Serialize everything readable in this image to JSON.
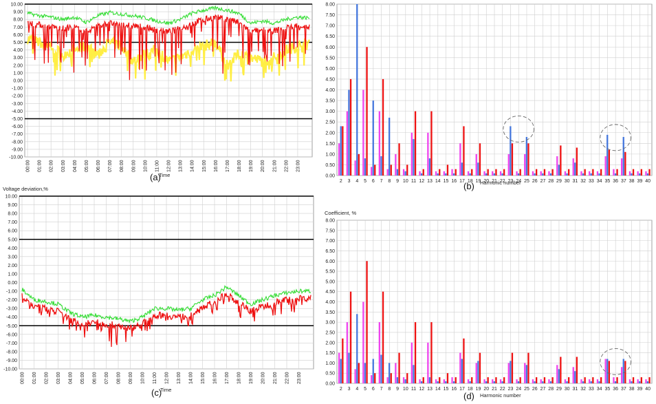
{
  "chart_data": [
    {
      "id": "a",
      "type": "line",
      "panel_label": "(a)",
      "title": "",
      "ylabel": "",
      "xlabel": "Time",
      "ylim": [
        -10,
        10
      ],
      "y_ticks": [
        "10.00",
        "9.00",
        "8.00",
        "7.00",
        "6.00",
        "5.00",
        "4.00",
        "3.00",
        "2.00",
        "1.00",
        "0.00",
        "-1.00",
        "-2.00",
        "-3.00",
        "-4.00",
        "-5.00",
        "-6.00",
        "-7.00",
        "-8.00",
        "-9.00",
        "-10.00"
      ],
      "x_ticks": [
        "00:00",
        "01:00",
        "02:00",
        "03:00",
        "04:00",
        "05:00",
        "06:00",
        "07:00",
        "08:00",
        "09:00",
        "10:00",
        "11:00",
        "12:00",
        "13:00",
        "14:00",
        "15:00",
        "16:00",
        "17:00",
        "18:00",
        "19:00",
        "20:00",
        "21:00",
        "22:00",
        "23:00"
      ],
      "limit_lines": [
        5,
        -5
      ],
      "grid": true,
      "series": [
        {
          "color": "#33dd33",
          "x": [
            0,
            1,
            2,
            3,
            4,
            5,
            6,
            7,
            8,
            9,
            10,
            11,
            12,
            13,
            14,
            15,
            16,
            17,
            18,
            19,
            20,
            21,
            22,
            23,
            24
          ],
          "values": [
            8.8,
            8.5,
            8.3,
            8.0,
            8.3,
            7.6,
            8.5,
            8.9,
            8.7,
            8.5,
            8.2,
            7.8,
            7.5,
            8.0,
            8.8,
            9.2,
            9.5,
            9.2,
            8.8,
            7.5,
            7.8,
            7.5,
            8.0,
            8.3,
            8.2
          ]
        },
        {
          "color": "#ee1111",
          "x": [
            0,
            1,
            2,
            3,
            4,
            5,
            6,
            7,
            8,
            9,
            10,
            11,
            12,
            13,
            14,
            15,
            16,
            17,
            18,
            19,
            20,
            21,
            22,
            23,
            24
          ],
          "values": [
            7.6,
            7.3,
            7.0,
            6.8,
            7.0,
            6.4,
            7.2,
            7.5,
            7.3,
            7.2,
            7.0,
            6.6,
            6.4,
            6.8,
            7.5,
            8.0,
            8.3,
            8.0,
            7.6,
            6.4,
            6.6,
            6.5,
            6.9,
            7.2,
            7.0
          ],
          "dips_to": [
            2.5,
            2.0,
            1.5,
            0.5,
            0.8,
            1.5,
            0.5,
            2.5,
            1.5,
            -1.0,
            1.0,
            2.0,
            0.5,
            1.0,
            2.5,
            2.0,
            3.0,
            -1.0,
            1.5,
            1.0,
            0.5,
            1.0,
            2.0,
            2.5,
            3.0
          ]
        },
        {
          "color": "#ffee44",
          "x": [
            0,
            1,
            2,
            3,
            4,
            5,
            6,
            7,
            8,
            9,
            10,
            11,
            12,
            13,
            14,
            15,
            16,
            17,
            18,
            19,
            20,
            21,
            22,
            23,
            24
          ],
          "values": [
            5.5,
            5.0,
            4.5,
            3.5,
            4.0,
            4.5,
            3.5,
            5.0,
            4.5,
            2.5,
            3.5,
            4.0,
            2.5,
            3.0,
            4.0,
            4.5,
            5.0,
            2.0,
            3.5,
            3.0,
            2.5,
            3.0,
            4.0,
            4.5,
            5.0
          ]
        }
      ]
    },
    {
      "id": "b",
      "type": "bar",
      "panel_label": "(b)",
      "title": "",
      "ylabel": "",
      "xlabel": "Harmonic number",
      "ylim": [
        0,
        8
      ],
      "y_ticks": [
        "8.00",
        "7.50",
        "7.00",
        "6.50",
        "6.00",
        "5.50",
        "5.00",
        "4.50",
        "4.00",
        "3.50",
        "3.00",
        "2.50",
        "2.00",
        "1.50",
        "1.00",
        "0.50",
        "0.00"
      ],
      "categories": [
        "2",
        "3",
        "4",
        "5",
        "6",
        "7",
        "8",
        "9",
        "10",
        "11",
        "12",
        "13",
        "14",
        "15",
        "16",
        "17",
        "18",
        "19",
        "20",
        "21",
        "22",
        "23",
        "24",
        "25",
        "26",
        "27",
        "28",
        "29",
        "30",
        "31",
        "32",
        "33",
        "34",
        "35",
        "36",
        "37",
        "38",
        "39",
        "40"
      ],
      "highlight_circles": [
        [
          "23",
          "25"
        ],
        [
          "35",
          "37"
        ]
      ],
      "series": [
        {
          "color": "#ee44ee",
          "values": [
            1.5,
            3.0,
            0.7,
            4.0,
            0.4,
            3.0,
            0.3,
            1.0,
            0.3,
            2.0,
            0.2,
            2.0,
            0.2,
            0.2,
            0.3,
            1.5,
            0.2,
            1.0,
            0.2,
            0.2,
            0.2,
            1.0,
            0.2,
            1.0,
            0.2,
            0.2,
            0.2,
            0.9,
            0.2,
            0.8,
            0.2,
            0.2,
            0.2,
            0.9,
            0.3,
            0.8,
            0.2,
            0.2,
            0.2
          ]
        },
        {
          "color": "#4477dd",
          "values": [
            2.3,
            4.0,
            8.0,
            0.8,
            3.5,
            0.9,
            2.7,
            0.3,
            0.2,
            1.7,
            0.1,
            0.8,
            0.1,
            0.1,
            0.1,
            0.6,
            0.1,
            0.6,
            0.1,
            0.1,
            0.1,
            2.3,
            0.1,
            1.8,
            0.1,
            0.1,
            0.1,
            0.5,
            0.1,
            0.6,
            0.1,
            0.1,
            0.1,
            1.9,
            0.1,
            1.8,
            0.1,
            0.1,
            0.1
          ]
        },
        {
          "color": "#ee1111",
          "values": [
            2.3,
            4.5,
            1.0,
            6.0,
            0.5,
            4.5,
            0.5,
            1.5,
            0.5,
            3.0,
            0.3,
            3.0,
            0.3,
            0.5,
            0.3,
            2.3,
            0.3,
            1.5,
            0.3,
            0.3,
            0.3,
            1.5,
            0.3,
            1.5,
            0.3,
            0.3,
            0.3,
            1.4,
            0.3,
            1.3,
            0.3,
            0.3,
            0.3,
            1.2,
            0.3,
            1.1,
            0.3,
            0.3,
            0.3
          ]
        }
      ]
    },
    {
      "id": "c",
      "type": "line",
      "panel_label": "(c)",
      "title": "Voltage deviation,%",
      "ylabel": "",
      "xlabel": "Time",
      "ylim": [
        -10,
        10
      ],
      "y_ticks": [
        "10.00",
        "9.00",
        "8.00",
        "7.00",
        "6.00",
        "5.00",
        "4.00",
        "3.00",
        "2.00",
        "1.00",
        "0.00",
        "-1.00",
        "-2.00",
        "-3.00",
        "-4.00",
        "-5.00",
        "-6.00",
        "-7.00",
        "-8.00",
        "-9.00",
        "-10.00"
      ],
      "x_ticks": [
        "00:00",
        "01:00",
        "02:00",
        "03:00",
        "04:00",
        "05:00",
        "06:00",
        "07:00",
        "08:00",
        "09:00",
        "10:00",
        "11:00",
        "12:00",
        "13:00",
        "14:00",
        "15:00",
        "16:00",
        "17:00",
        "18:00",
        "19:00",
        "20:00",
        "21:00",
        "22:00",
        "23:00"
      ],
      "limit_lines": [
        5,
        -5
      ],
      "grid": true,
      "series": [
        {
          "color": "#33dd33",
          "x": [
            0,
            1,
            2,
            3,
            4,
            5,
            6,
            7,
            8,
            9,
            10,
            11,
            12,
            13,
            14,
            15,
            16,
            17,
            18,
            19,
            20,
            21,
            22,
            23,
            24
          ],
          "values": [
            -0.8,
            -2.0,
            -2.2,
            -2.5,
            -3.5,
            -4.0,
            -3.8,
            -4.0,
            -4.2,
            -4.5,
            -4.0,
            -3.0,
            -3.0,
            -3.2,
            -3.0,
            -2.0,
            -1.5,
            -0.5,
            -1.5,
            -2.5,
            -2.0,
            -1.5,
            -1.2,
            -1.0,
            -1.0
          ]
        },
        {
          "color": "#ee1111",
          "x": [
            0,
            1,
            2,
            3,
            4,
            5,
            6,
            7,
            8,
            9,
            10,
            11,
            12,
            13,
            14,
            15,
            16,
            17,
            18,
            19,
            20,
            21,
            22,
            23,
            24
          ],
          "values": [
            -1.5,
            -2.8,
            -3.0,
            -3.3,
            -4.3,
            -4.8,
            -4.6,
            -4.8,
            -5.0,
            -5.3,
            -4.8,
            -3.8,
            -3.8,
            -4.0,
            -3.8,
            -2.8,
            -2.3,
            -1.3,
            -2.3,
            -3.3,
            -2.8,
            -2.3,
            -2.0,
            -1.8,
            -1.8
          ],
          "dips_to": [
            -2.5,
            -3.5,
            -4.0,
            -4.5,
            -5.5,
            -6.5,
            -6.5,
            -7.0,
            -8.5,
            -8.0,
            -6.5,
            -5.0,
            -5.0,
            -5.5,
            -5.0,
            -4.0,
            -3.5,
            -2.5,
            -4.0,
            -5.0,
            -4.5,
            -4.0,
            -3.5,
            -3.5,
            -3.0
          ]
        }
      ]
    },
    {
      "id": "d",
      "type": "bar",
      "panel_label": "(d)",
      "title": "Coefficient, %",
      "ylabel": "",
      "xlabel": "Harmonic number",
      "ylim": [
        0,
        8
      ],
      "y_ticks": [
        "8.00",
        "7.50",
        "7.00",
        "6.50",
        "6.00",
        "5.50",
        "5.00",
        "4.50",
        "4.00",
        "3.50",
        "3.00",
        "2.50",
        "2.00",
        "1.50",
        "1.00",
        "0.50",
        "0.00"
      ],
      "categories": [
        "2",
        "3",
        "4",
        "5",
        "6",
        "7",
        "8",
        "9",
        "10",
        "11",
        "12",
        "13",
        "14",
        "15",
        "16",
        "17",
        "18",
        "19",
        "20",
        "21",
        "22",
        "23",
        "24",
        "25",
        "26",
        "27",
        "28",
        "29",
        "30",
        "31",
        "32",
        "33",
        "34",
        "35",
        "36",
        "37",
        "38",
        "39",
        "40"
      ],
      "highlight_circles": [
        [
          "35",
          "37"
        ]
      ],
      "series": [
        {
          "color": "#ee44ee",
          "values": [
            1.5,
            3.0,
            0.7,
            4.0,
            0.4,
            3.0,
            0.3,
            1.0,
            0.3,
            2.0,
            0.2,
            2.0,
            0.2,
            0.2,
            0.3,
            1.5,
            0.2,
            1.0,
            0.2,
            0.2,
            0.2,
            1.0,
            0.2,
            1.0,
            0.2,
            0.2,
            0.2,
            0.9,
            0.2,
            0.8,
            0.2,
            0.2,
            0.2,
            1.2,
            0.3,
            0.8,
            0.2,
            0.2,
            0.2
          ]
        },
        {
          "color": "#4477dd",
          "values": [
            1.2,
            1.5,
            3.4,
            1.0,
            1.2,
            1.4,
            1.0,
            0.3,
            0.2,
            0.9,
            0.1,
            0.3,
            0.1,
            0.1,
            0.1,
            1.2,
            0.1,
            1.1,
            0.1,
            0.1,
            0.1,
            1.1,
            0.1,
            0.9,
            0.1,
            0.1,
            0.1,
            0.7,
            0.1,
            0.6,
            0.1,
            0.1,
            0.1,
            1.2,
            0.1,
            1.2,
            0.1,
            0.1,
            0.1
          ]
        },
        {
          "color": "#ee1111",
          "values": [
            2.2,
            4.5,
            1.0,
            6.0,
            0.5,
            4.5,
            0.5,
            1.5,
            0.5,
            3.0,
            0.3,
            3.0,
            0.3,
            0.5,
            0.3,
            2.2,
            0.3,
            1.5,
            0.3,
            0.3,
            0.3,
            1.5,
            0.3,
            1.5,
            0.3,
            0.3,
            0.3,
            1.3,
            0.3,
            1.3,
            0.3,
            0.3,
            0.3,
            1.1,
            0.3,
            1.1,
            0.3,
            0.3,
            0.3
          ]
        }
      ]
    }
  ]
}
